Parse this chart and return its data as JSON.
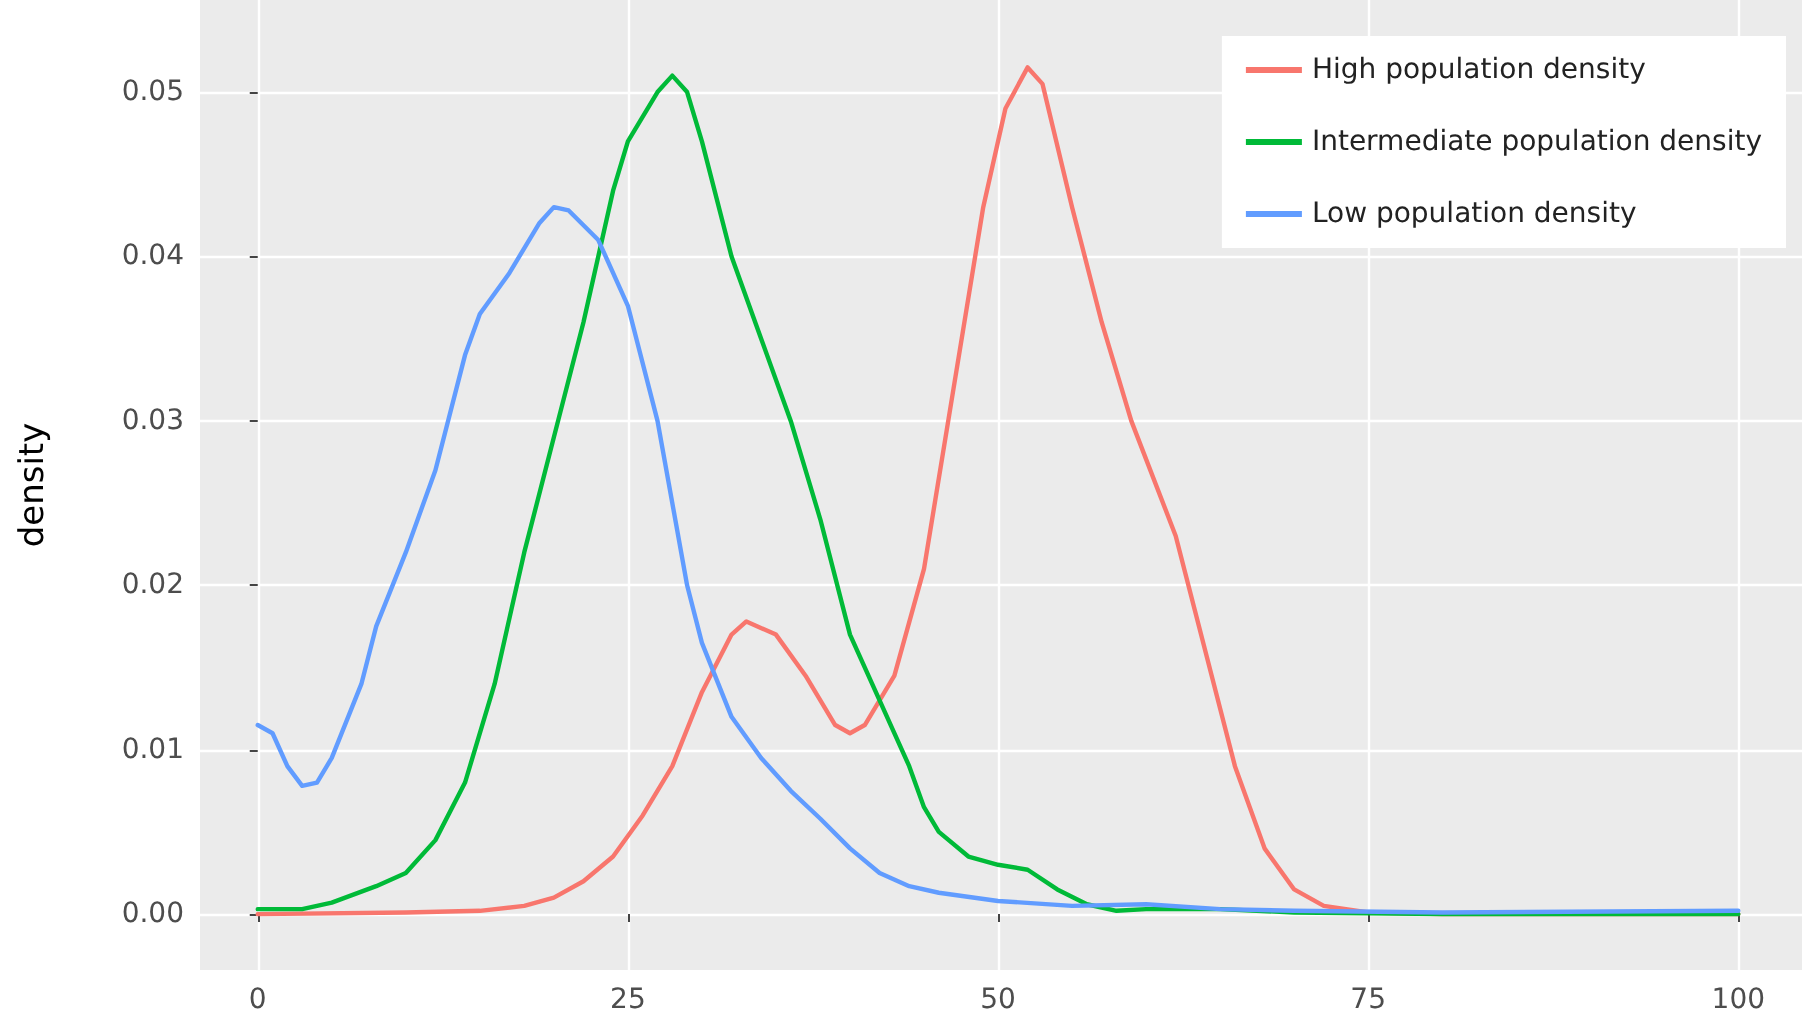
{
  "chart_data": {
    "type": "line",
    "ylabel": "density",
    "xlim": [
      -3.9,
      104.3
    ],
    "ylim": [
      -0.0034,
      0.0556
    ],
    "xticks": [
      0,
      25,
      50,
      75,
      100
    ],
    "yticks": [
      {
        "value": 0,
        "label": "0.00"
      },
      {
        "value": 0.01,
        "label": "0.01"
      },
      {
        "value": 0.02,
        "label": "0.02"
      },
      {
        "value": 0.03,
        "label": "0.03"
      },
      {
        "value": 0.04,
        "label": "0.04"
      },
      {
        "value": 0.05,
        "label": "0.05"
      }
    ],
    "grid": true,
    "legend": "top right",
    "marker": "none",
    "line_style": "solid",
    "series": [
      {
        "name": "High population density",
        "color": "#f8766d",
        "x": [
          0,
          10,
          15,
          18,
          20,
          22,
          24,
          26,
          28,
          30,
          32,
          33,
          35,
          37,
          39,
          40,
          41,
          43,
          45,
          47,
          49,
          50.5,
          52,
          53,
          55,
          57,
          59,
          62,
          64,
          66,
          68,
          70,
          72,
          75,
          80,
          100
        ],
        "values": [
          0,
          0.0001,
          0.0002,
          0.0005,
          0.001,
          0.002,
          0.0035,
          0.006,
          0.009,
          0.0135,
          0.017,
          0.0178,
          0.017,
          0.0145,
          0.0115,
          0.011,
          0.0115,
          0.0145,
          0.021,
          0.032,
          0.043,
          0.049,
          0.0515,
          0.0505,
          0.043,
          0.036,
          0.03,
          0.023,
          0.016,
          0.009,
          0.004,
          0.0015,
          0.0005,
          0.0001,
          0,
          0
        ]
      },
      {
        "name": "Intermediate population density",
        "color": "#00ba38",
        "x": [
          0,
          3,
          5,
          8,
          10,
          12,
          14,
          16,
          18,
          20,
          22,
          24,
          25,
          27,
          28,
          29,
          30,
          32,
          34,
          36,
          38,
          40,
          42,
          44,
          45,
          46,
          48,
          50,
          52,
          54,
          56,
          58,
          60,
          65,
          70,
          80,
          100
        ],
        "values": [
          0.0003,
          0.0003,
          0.0007,
          0.0017,
          0.0025,
          0.0045,
          0.008,
          0.014,
          0.022,
          0.029,
          0.036,
          0.044,
          0.047,
          0.05,
          0.051,
          0.05,
          0.047,
          0.04,
          0.035,
          0.03,
          0.024,
          0.017,
          0.013,
          0.009,
          0.0065,
          0.005,
          0.0035,
          0.003,
          0.0027,
          0.0015,
          0.0006,
          0.0002,
          0.0003,
          0.0003,
          0.0001,
          0,
          0
        ]
      },
      {
        "name": "Low population density",
        "color": "#619cff",
        "x": [
          0,
          1,
          2,
          3,
          4,
          5,
          7,
          8,
          10,
          12,
          14,
          15,
          17,
          19,
          20,
          21,
          23,
          25,
          27,
          29,
          30,
          32,
          34,
          36,
          38,
          40,
          42,
          44,
          46,
          50,
          55,
          60,
          65,
          70,
          80,
          100
        ],
        "values": [
          0.0115,
          0.011,
          0.009,
          0.0078,
          0.008,
          0.0095,
          0.014,
          0.0175,
          0.022,
          0.027,
          0.034,
          0.0365,
          0.039,
          0.042,
          0.043,
          0.0428,
          0.041,
          0.037,
          0.03,
          0.02,
          0.0165,
          0.012,
          0.0095,
          0.0075,
          0.0058,
          0.004,
          0.0025,
          0.0017,
          0.0013,
          0.0008,
          0.0005,
          0.0006,
          0.0003,
          0.0002,
          0.0001,
          0.0002
        ]
      }
    ]
  }
}
